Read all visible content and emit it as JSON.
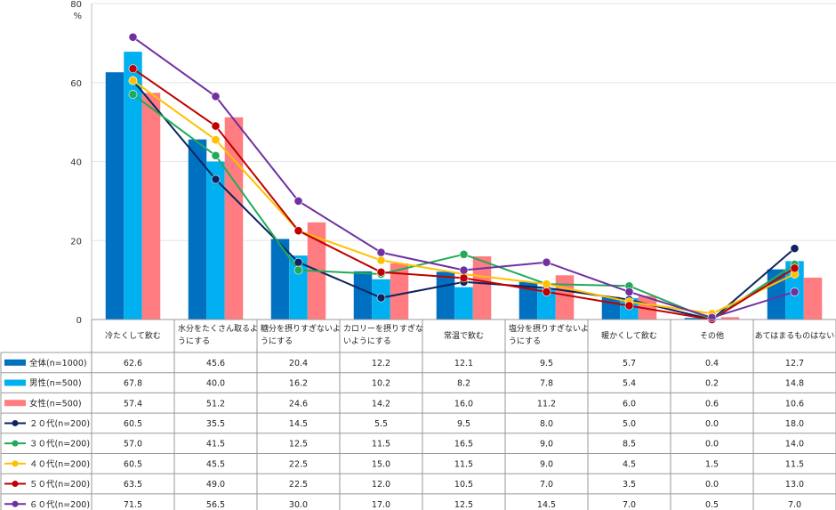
{
  "chart_data": {
    "type": "bar",
    "y_unit": "%",
    "ylim": [
      0,
      80
    ],
    "yticks": [
      0,
      20,
      40,
      60,
      80
    ],
    "categories": [
      [
        "冷たくして飲む"
      ],
      [
        "水分をたくさん取るよ",
        "うにする"
      ],
      [
        "糖分を摂りすぎないよ",
        "うにする"
      ],
      [
        "カロリーを摂りすぎな",
        "いようにする"
      ],
      [
        "常温で飲む"
      ],
      [
        "塩分を摂りすぎないよ",
        "うにする"
      ],
      [
        "暖かくして飲む"
      ],
      [
        "その他"
      ],
      [
        "あてはまるものはない"
      ]
    ],
    "series": [
      {
        "name": "全体(n=1000)",
        "kind": "bar",
        "color": "#0070c0",
        "values": [
          62.6,
          45.6,
          20.4,
          12.2,
          12.1,
          9.5,
          5.7,
          0.4,
          12.7
        ]
      },
      {
        "name": "男性(n=500)",
        "kind": "bar",
        "color": "#00b0f0",
        "values": [
          67.8,
          40.0,
          16.2,
          10.2,
          8.2,
          7.8,
          5.4,
          0.2,
          14.8
        ]
      },
      {
        "name": "女性(n=500)",
        "kind": "bar",
        "color": "#ff7c80",
        "values": [
          57.4,
          51.2,
          24.6,
          14.2,
          16.0,
          11.2,
          6.0,
          0.6,
          10.6
        ]
      },
      {
        "name": "２０代(n=200)",
        "kind": "line",
        "color": "#0d2460",
        "values": [
          60.5,
          35.5,
          14.5,
          5.5,
          9.5,
          8.0,
          5.0,
          0.0,
          18.0
        ]
      },
      {
        "name": "３０代(n=200)",
        "kind": "line",
        "color": "#22aa5a",
        "values": [
          57.0,
          41.5,
          12.5,
          11.5,
          16.5,
          9.0,
          8.5,
          0.0,
          14.0
        ]
      },
      {
        "name": "４０代(n=200)",
        "kind": "line",
        "color": "#ffc000",
        "values": [
          60.5,
          45.5,
          22.5,
          15.0,
          11.5,
          9.0,
          4.5,
          1.5,
          11.5
        ]
      },
      {
        "name": "５０代(n=200)",
        "kind": "line",
        "color": "#c00000",
        "values": [
          63.5,
          49.0,
          22.5,
          12.0,
          10.5,
          7.0,
          3.5,
          0.0,
          13.0
        ]
      },
      {
        "name": "６０代(n=200)",
        "kind": "line",
        "color": "#7030a0",
        "values": [
          71.5,
          56.5,
          30.0,
          17.0,
          12.5,
          14.5,
          7.0,
          0.5,
          7.0
        ]
      }
    ]
  }
}
